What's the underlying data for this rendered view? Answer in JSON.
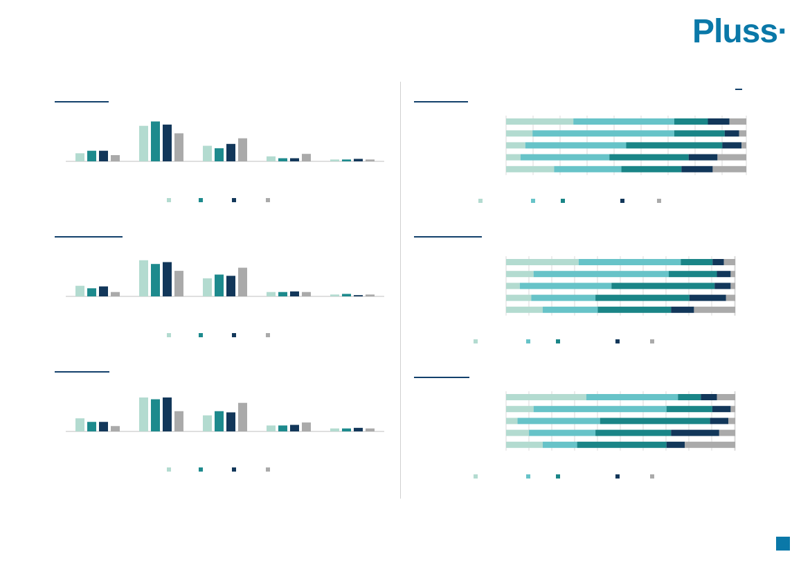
{
  "brand": {
    "logo_text": "Pluss·",
    "accent": "#0a78a8"
  },
  "colors": {
    "light_mint": "#b3dbd0",
    "teal": "#1d8a8d",
    "navy": "#12375a",
    "gray": "#aaaaaa",
    "light_cyan": "#67c3c8",
    "dark_teal": "#1a8587"
  },
  "chart_data": [
    {
      "type": "bar",
      "categories": [
        "",
        "",
        "",
        "",
        ""
      ],
      "series": [
        {
          "values": [
            13,
            57,
            25,
            8,
            3
          ],
          "color": "#b3dbd0"
        },
        {
          "values": [
            17,
            64,
            21,
            5,
            3
          ],
          "color": "#1d8a8d"
        },
        {
          "values": [
            17,
            59,
            28,
            5,
            4
          ],
          "color": "#12375a"
        },
        {
          "values": [
            10,
            45,
            37,
            12,
            3
          ],
          "color": "#aaaaaa"
        }
      ],
      "ylim": [
        0,
        70
      ]
    },
    {
      "type": "bar",
      "categories": [
        "",
        "",
        "",
        "",
        ""
      ],
      "series": [
        {
          "values": [
            17,
            58,
            29,
            7,
            3
          ],
          "color": "#b3dbd0"
        },
        {
          "values": [
            13,
            52,
            35,
            7,
            4
          ],
          "color": "#1d8a8d"
        },
        {
          "values": [
            16,
            55,
            33,
            8,
            2
          ],
          "color": "#12375a"
        },
        {
          "values": [
            7,
            41,
            46,
            7,
            3
          ],
          "color": "#aaaaaa"
        }
      ],
      "ylim": [
        0,
        70
      ]
    },
    {
      "type": "bar",
      "categories": [
        "",
        "",
        "",
        "",
        ""
      ],
      "series": [
        {
          "values": [
            22,
            57,
            27,
            10,
            5
          ],
          "color": "#b3dbd0"
        },
        {
          "values": [
            16,
            54,
            34,
            10,
            5
          ],
          "color": "#1d8a8d"
        },
        {
          "values": [
            16,
            57,
            32,
            11,
            6
          ],
          "color": "#12375a"
        },
        {
          "values": [
            9,
            34,
            48,
            15,
            5
          ],
          "color": "#aaaaaa"
        }
      ],
      "ylim": [
        0,
        70
      ]
    },
    {
      "type": "bar",
      "stacked": true,
      "orientation": "horizontal",
      "segment_colors": [
        "#b3dbd0",
        "#67c3c8",
        "#1a8587",
        "#12375a",
        "#aaaaaa"
      ],
      "rows": [
        [
          28,
          42,
          14,
          9,
          7
        ],
        [
          11,
          59,
          21,
          6,
          3
        ],
        [
          8,
          42,
          40,
          8,
          2
        ],
        [
          6,
          37,
          33,
          12,
          12
        ],
        [
          20,
          28,
          25,
          13,
          14
        ]
      ]
    },
    {
      "type": "bar",
      "stacked": true,
      "orientation": "horizontal",
      "segment_colors": [
        "#b3dbd0",
        "#67c3c8",
        "#1a8587",
        "#12375a",
        "#aaaaaa"
      ],
      "rows": [
        [
          32,
          45,
          14,
          5,
          5
        ],
        [
          12,
          59,
          21,
          6,
          2
        ],
        [
          6,
          40,
          45,
          7,
          2
        ],
        [
          11,
          28,
          41,
          16,
          4
        ],
        [
          16,
          24,
          32,
          10,
          18
        ]
      ]
    },
    {
      "type": "bar",
      "stacked": true,
      "orientation": "horizontal",
      "segment_colors": [
        "#b3dbd0",
        "#67c3c8",
        "#1a8587",
        "#12375a",
        "#aaaaaa"
      ],
      "rows": [
        [
          35,
          40,
          10,
          7,
          8
        ],
        [
          12,
          58,
          20,
          8,
          2
        ],
        [
          5,
          36,
          48,
          8,
          3
        ],
        [
          10,
          29,
          33,
          21,
          7
        ],
        [
          16,
          15,
          39,
          8,
          22
        ]
      ]
    }
  ]
}
